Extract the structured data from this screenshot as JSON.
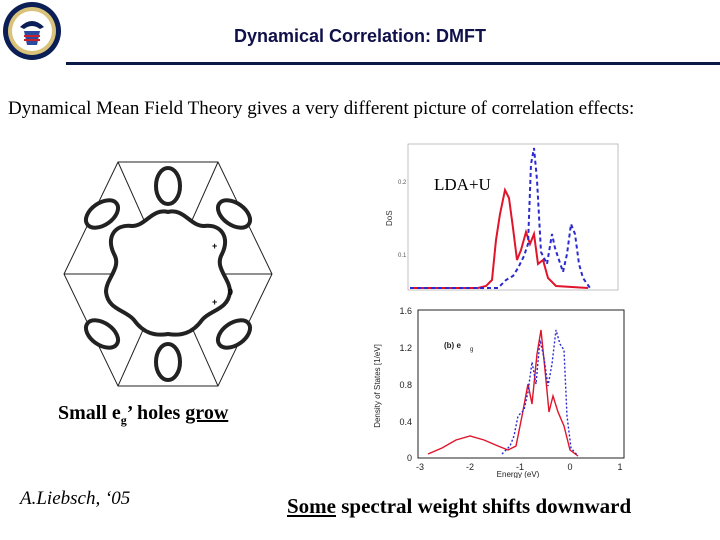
{
  "header": {
    "title": "Dynamical Correlation: DMFT"
  },
  "subtitle": "Dynamical Mean Field Theory gives a very different picture of correlation effects:",
  "hexagon_figure": {
    "labels": [
      "+",
      "0",
      "+"
    ]
  },
  "upper_plot": {
    "label": "LDA+U",
    "ylabel": "DoS",
    "ticks": [
      "0.2",
      "0.1"
    ]
  },
  "lower_plot": {
    "panel_label": "(b) e",
    "panel_sub": "g",
    "xlabel": "Energy (eV)",
    "ylabel": "Density of States   [1/eV]",
    "yticks": [
      "1.6",
      "1.2",
      "0.8",
      "0.4",
      "0"
    ],
    "xticks": [
      "-3",
      "-2",
      "-1",
      "0",
      "1"
    ]
  },
  "holes_text": {
    "part1": "Small e",
    "sub": "g",
    "part2": "’ holes ",
    "underlined": "grow"
  },
  "author": "A.Liebsch, ‘05",
  "bottom_text": {
    "underlined": "Some",
    "rest": " spectral weight shifts downward"
  },
  "colors": {
    "header_text": "#10104a",
    "rule": "#0a1a44",
    "solid_series": "#e0142a",
    "dashed_series": "#2a2ad0"
  }
}
